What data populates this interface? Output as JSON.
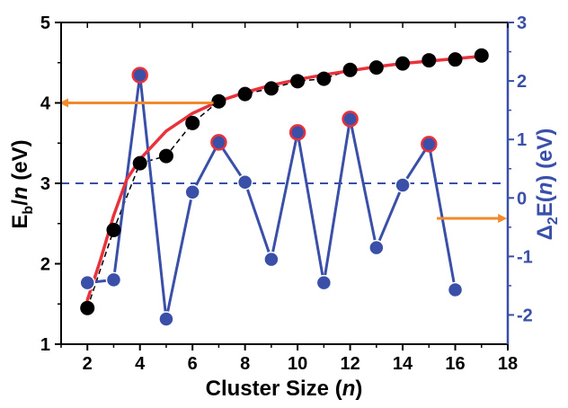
{
  "chart_data": {
    "type": "scatter",
    "xlabel": {
      "main": "Cluster Size (",
      "var": "n",
      "tail": ")"
    },
    "ylabel_left": {
      "main": "E",
      "sub": "b",
      "slash": "/",
      "var": "n",
      "tail": " (eV)"
    },
    "ylabel_right": {
      "delta": "Δ",
      "sub": "2",
      "main": "E(",
      "var": "n",
      "tail": ") (eV)"
    },
    "x_axis": {
      "range": [
        1,
        18
      ],
      "ticks": [
        2,
        4,
        6,
        8,
        10,
        12,
        14,
        16,
        18
      ],
      "tick_labels": [
        "2",
        "4",
        "6",
        "8",
        "10",
        "12",
        "14",
        "16",
        "18"
      ]
    },
    "y_left": {
      "range": [
        1,
        5
      ],
      "ticks": [
        1,
        2,
        3,
        4,
        5
      ],
      "tick_labels": [
        "1",
        "2",
        "3",
        "4",
        "5"
      ]
    },
    "y_right": {
      "range": [
        -2.5,
        3
      ],
      "ticks": [
        -2,
        -1,
        0,
        1,
        2,
        3
      ],
      "tick_labels": [
        "-2",
        "-1",
        "0",
        "1",
        "2",
        "3"
      ]
    },
    "binding_energy": {
      "axis": "left",
      "color": "#000000",
      "x": [
        2,
        3,
        4,
        5,
        6,
        7,
        8,
        9,
        10,
        11,
        12,
        13,
        14,
        15,
        16,
        17
      ],
      "y": [
        1.45,
        2.42,
        3.25,
        3.34,
        3.75,
        4.02,
        4.11,
        4.18,
        4.27,
        4.3,
        4.41,
        4.44,
        4.49,
        4.53,
        4.54,
        4.59
      ]
    },
    "fit_curve": {
      "axis": "left",
      "color": "#e8323c",
      "x": [
        2,
        2.5,
        3,
        3.5,
        4,
        5,
        6,
        7,
        8,
        9,
        10,
        11,
        12,
        13,
        14,
        15,
        16,
        17
      ],
      "y": [
        1.55,
        2.05,
        2.6,
        3.05,
        3.3,
        3.65,
        3.87,
        4.02,
        4.13,
        4.22,
        4.29,
        4.35,
        4.4,
        4.45,
        4.49,
        4.52,
        4.55,
        4.58
      ]
    },
    "second_difference": {
      "axis": "right",
      "color": "#3a4fa8",
      "highlight_color": "#e8323c",
      "x": [
        2,
        3,
        4,
        5,
        6,
        7,
        8,
        9,
        10,
        11,
        12,
        13,
        14,
        15,
        16
      ],
      "y": [
        -1.45,
        -1.4,
        2.1,
        -2.07,
        0.1,
        0.95,
        0.27,
        -1.05,
        1.12,
        -1.45,
        1.35,
        -0.85,
        0.22,
        0.92,
        -1.57
      ],
      "highlighted_x": [
        4,
        7,
        10,
        12,
        15
      ]
    },
    "reference_line": {
      "axis": "right",
      "y": 0.25,
      "style": "dashed",
      "color": "#3a4fa8"
    },
    "arrows": [
      {
        "direction": "left",
        "axis": "left",
        "y": 4.0,
        "from_x": 6.8,
        "to_x": 1.1,
        "color": "#f08a2c"
      },
      {
        "direction": "right",
        "axis": "right",
        "y": -0.35,
        "from_x": 15.3,
        "to_x": 17.8,
        "color": "#f08a2c"
      }
    ],
    "colors": {
      "left_axis": "#000000",
      "right_axis": "#3a4fa8",
      "curve": "#e8323c",
      "arrow": "#f08a2c"
    },
    "grid": false,
    "legend": "none"
  }
}
